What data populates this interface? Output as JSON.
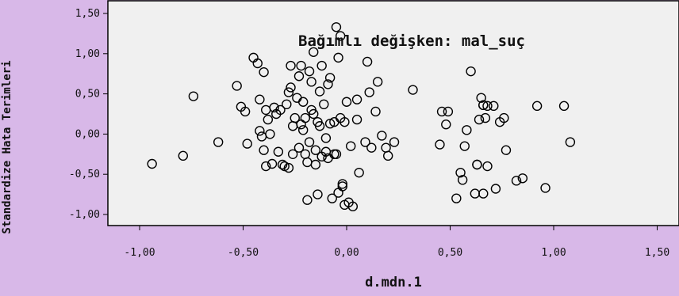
{
  "chart_data": {
    "type": "scatter",
    "title": "Bağımlı değişken: mal_suç",
    "xlabel": "d.mdn.1",
    "ylabel": "Standardize Hata Terimleri",
    "xlim": [
      -1.2,
      1.6
    ],
    "ylim": [
      -1.15,
      1.6
    ],
    "x_ticks": [
      -1.0,
      -0.5,
      0.0,
      0.5,
      1.0,
      1.5
    ],
    "x_tick_labels": [
      "-1,00",
      "-0,50",
      "0,00",
      "0,50",
      "1,00",
      "1,50"
    ],
    "y_ticks": [
      -1.0,
      -0.5,
      0.0,
      0.5,
      1.0,
      1.5
    ],
    "y_tick_labels": [
      "-1,00",
      "-0,50",
      "0,00",
      "0,50",
      "1,00",
      "1,50"
    ],
    "grid": false,
    "colors": {
      "background": "#d8b8e8",
      "plot_area": "#f0f0f0",
      "marker_stroke": "#000000",
      "marker_fill": "none"
    },
    "points": [
      [
        -0.94,
        -0.37
      ],
      [
        -0.79,
        -0.27
      ],
      [
        -0.74,
        0.47
      ],
      [
        -0.62,
        -0.1
      ],
      [
        -0.53,
        0.6
      ],
      [
        -0.51,
        0.34
      ],
      [
        -0.49,
        0.28
      ],
      [
        -0.48,
        -0.12
      ],
      [
        -0.45,
        0.95
      ],
      [
        -0.43,
        0.88
      ],
      [
        -0.42,
        0.43
      ],
      [
        -0.42,
        0.04
      ],
      [
        -0.41,
        -0.03
      ],
      [
        -0.4,
        0.77
      ],
      [
        -0.4,
        -0.2
      ],
      [
        -0.39,
        -0.4
      ],
      [
        -0.39,
        0.3
      ],
      [
        -0.38,
        0.18
      ],
      [
        -0.37,
        0.0
      ],
      [
        -0.36,
        -0.37
      ],
      [
        -0.35,
        0.33
      ],
      [
        -0.34,
        0.25
      ],
      [
        -0.33,
        -0.22
      ],
      [
        -0.32,
        0.3
      ],
      [
        -0.31,
        -0.38
      ],
      [
        -0.3,
        -0.4
      ],
      [
        -0.29,
        0.37
      ],
      [
        -0.28,
        0.52
      ],
      [
        -0.28,
        -0.42
      ],
      [
        -0.27,
        0.85
      ],
      [
        -0.27,
        0.58
      ],
      [
        -0.26,
        0.1
      ],
      [
        -0.26,
        -0.25
      ],
      [
        -0.25,
        0.2
      ],
      [
        -0.24,
        0.45
      ],
      [
        -0.23,
        0.72
      ],
      [
        -0.23,
        -0.17
      ],
      [
        -0.22,
        0.85
      ],
      [
        -0.22,
        0.12
      ],
      [
        -0.21,
        0.05
      ],
      [
        -0.21,
        0.4
      ],
      [
        -0.2,
        -0.25
      ],
      [
        -0.2,
        0.2
      ],
      [
        -0.19,
        -0.82
      ],
      [
        -0.19,
        -0.35
      ],
      [
        -0.18,
        0.78
      ],
      [
        -0.18,
        -0.1
      ],
      [
        -0.17,
        0.3
      ],
      [
        -0.17,
        0.65
      ],
      [
        -0.16,
        1.02
      ],
      [
        -0.16,
        0.25
      ],
      [
        -0.15,
        -0.2
      ],
      [
        -0.15,
        -0.38
      ],
      [
        -0.14,
        -0.75
      ],
      [
        -0.14,
        0.15
      ],
      [
        -0.13,
        0.1
      ],
      [
        -0.13,
        0.53
      ],
      [
        -0.12,
        -0.28
      ],
      [
        -0.12,
        0.85
      ],
      [
        -0.11,
        0.37
      ],
      [
        -0.1,
        -0.22
      ],
      [
        -0.1,
        -0.05
      ],
      [
        -0.09,
        -0.3
      ],
      [
        -0.09,
        0.62
      ],
      [
        -0.08,
        0.7
      ],
      [
        -0.08,
        0.13
      ],
      [
        -0.07,
        -0.8
      ],
      [
        -0.06,
        0.15
      ],
      [
        -0.06,
        -0.25
      ],
      [
        -0.05,
        1.33
      ],
      [
        -0.05,
        -0.25
      ],
      [
        -0.04,
        0.95
      ],
      [
        -0.04,
        -0.73
      ],
      [
        -0.03,
        1.22
      ],
      [
        -0.03,
        0.2
      ],
      [
        -0.02,
        -0.65
      ],
      [
        -0.02,
        -0.62
      ],
      [
        -0.01,
        0.15
      ],
      [
        -0.01,
        -0.88
      ],
      [
        0.0,
        0.4
      ],
      [
        0.01,
        -0.85
      ],
      [
        0.02,
        -0.15
      ],
      [
        0.03,
        -0.9
      ],
      [
        0.05,
        0.18
      ],
      [
        0.05,
        0.43
      ],
      [
        0.06,
        -0.48
      ],
      [
        0.09,
        -0.1
      ],
      [
        0.1,
        0.9
      ],
      [
        0.11,
        0.52
      ],
      [
        0.12,
        -0.17
      ],
      [
        0.14,
        0.28
      ],
      [
        0.15,
        0.65
      ],
      [
        0.17,
        -0.02
      ],
      [
        0.19,
        -0.17
      ],
      [
        0.2,
        -0.27
      ],
      [
        0.23,
        -0.1
      ],
      [
        0.32,
        0.55
      ],
      [
        0.45,
        -0.13
      ],
      [
        0.46,
        0.28
      ],
      [
        0.48,
        0.12
      ],
      [
        0.49,
        0.28
      ],
      [
        0.53,
        -0.8
      ],
      [
        0.55,
        -0.48
      ],
      [
        0.56,
        -0.57
      ],
      [
        0.57,
        -0.15
      ],
      [
        0.58,
        0.05
      ],
      [
        0.6,
        0.78
      ],
      [
        0.62,
        -0.74
      ],
      [
        0.63,
        -0.38
      ],
      [
        0.63,
        -0.38
      ],
      [
        0.64,
        0.18
      ],
      [
        0.65,
        0.45
      ],
      [
        0.66,
        0.36
      ],
      [
        0.66,
        0.36
      ],
      [
        0.66,
        -0.74
      ],
      [
        0.67,
        0.2
      ],
      [
        0.68,
        0.35
      ],
      [
        0.68,
        -0.4
      ],
      [
        0.71,
        0.35
      ],
      [
        0.72,
        -0.68
      ],
      [
        0.74,
        0.15
      ],
      [
        0.76,
        0.2
      ],
      [
        0.77,
        -0.2
      ],
      [
        0.82,
        -0.58
      ],
      [
        0.85,
        -0.55
      ],
      [
        0.92,
        0.35
      ],
      [
        0.96,
        -0.67
      ],
      [
        1.05,
        0.35
      ],
      [
        1.08,
        -0.1
      ]
    ]
  }
}
